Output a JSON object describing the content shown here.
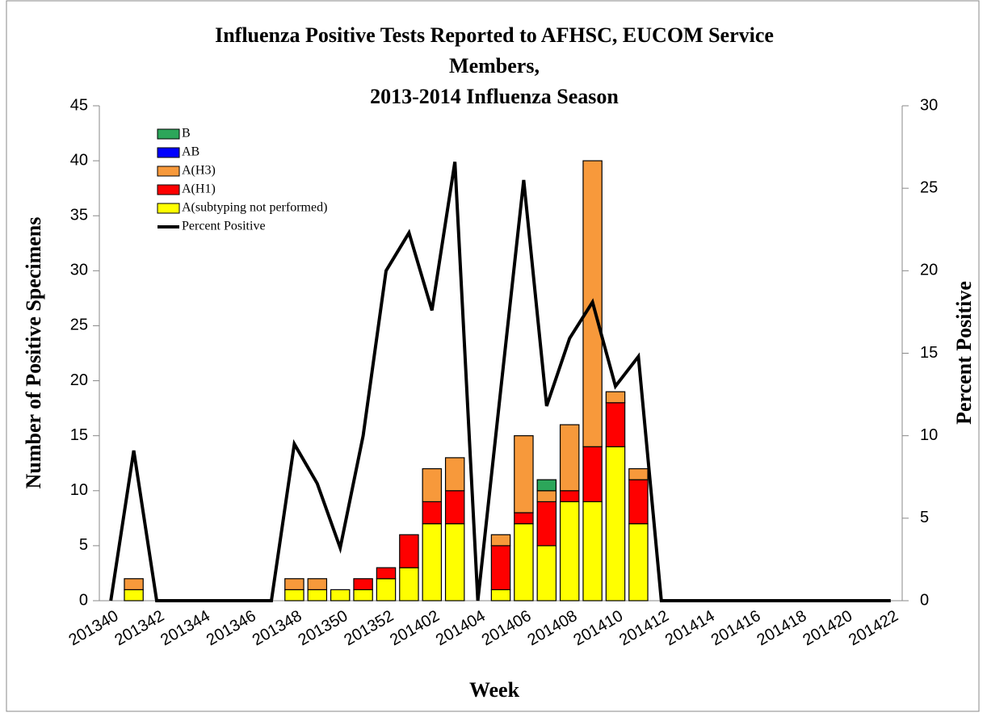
{
  "chart_data": {
    "type": "bar",
    "stacked": true,
    "title": [
      "Influenza Positive Tests Reported to AFHSC, EUCOM Service",
      "Members,",
      "2013-2014 Influenza Season"
    ],
    "x_label": "Week",
    "y_label": "Number  of  Positive  Specimens",
    "y2_label": "Percent  Positive",
    "categories": [
      "201340",
      null,
      "201342",
      null,
      "201344",
      null,
      "201346",
      null,
      "201348",
      null,
      "201350",
      null,
      "201352",
      null,
      "201402",
      null,
      "201404",
      null,
      "201406",
      null,
      "201408",
      null,
      "201410",
      null,
      "201412",
      null,
      "201414",
      null,
      "201416",
      null,
      "201418",
      null,
      "201420",
      null,
      "201422"
    ],
    "series": [
      {
        "name": "B",
        "color": "#2ca65a",
        "values": [
          0,
          0,
          0,
          0,
          0,
          0,
          0,
          0,
          0,
          0,
          0,
          0,
          0,
          0,
          0,
          0,
          0,
          0,
          0,
          1,
          0,
          0,
          0,
          0,
          0,
          0,
          0,
          0,
          0,
          0,
          0,
          0,
          0,
          0,
          0
        ]
      },
      {
        "name": "AB",
        "color": "#0000ff",
        "values": [
          0,
          0,
          0,
          0,
          0,
          0,
          0,
          0,
          0,
          0,
          0,
          0,
          0,
          0,
          0,
          0,
          0,
          0,
          0,
          0,
          0,
          0,
          0,
          0,
          0,
          0,
          0,
          0,
          0,
          0,
          0,
          0,
          0,
          0,
          0
        ]
      },
      {
        "name": "A(H3)",
        "color": "#f7993b",
        "values": [
          0,
          1,
          0,
          0,
          0,
          0,
          0,
          0,
          1,
          1,
          0,
          0,
          0,
          0,
          3,
          3,
          0,
          1,
          7,
          1,
          6,
          26,
          1,
          1,
          0,
          0,
          0,
          0,
          0,
          0,
          0,
          0,
          0,
          0,
          0
        ]
      },
      {
        "name": "A(H1)",
        "color": "#ff0000",
        "values": [
          0,
          0,
          0,
          0,
          0,
          0,
          0,
          0,
          0,
          0,
          0,
          1,
          1,
          3,
          2,
          3,
          0,
          4,
          1,
          4,
          1,
          5,
          4,
          4,
          0,
          0,
          0,
          0,
          0,
          0,
          0,
          0,
          0,
          0,
          0
        ]
      },
      {
        "name": "A(subtyping not performed)",
        "color": "#ffff00",
        "values": [
          0,
          1,
          0,
          0,
          0,
          0,
          0,
          0,
          1,
          1,
          1,
          1,
          2,
          3,
          7,
          7,
          0,
          1,
          7,
          5,
          9,
          9,
          14,
          7,
          0,
          0,
          0,
          0,
          0,
          0,
          0,
          0,
          0,
          0,
          0
        ]
      },
      {
        "name": "Percent Positive",
        "type": "line",
        "axis": "y2",
        "color": "#000000",
        "values": [
          0,
          9.1,
          0,
          0,
          0,
          0,
          0,
          0,
          9.5,
          7.1,
          3.2,
          10.0,
          20.0,
          22.3,
          17.6,
          26.6,
          0,
          12.8,
          25.5,
          11.8,
          15.9,
          18.1,
          13.0,
          14.8,
          0,
          0,
          0,
          0,
          0,
          0,
          0,
          0,
          0,
          0,
          0
        ]
      }
    ],
    "ylim": [
      0,
      45
    ],
    "yticks": [
      0,
      5,
      10,
      15,
      20,
      25,
      30,
      35,
      40,
      45
    ],
    "y2lim": [
      0,
      30
    ],
    "y2ticks": [
      0,
      5,
      10,
      15,
      20,
      25,
      30
    ],
    "legend": "top-left"
  }
}
